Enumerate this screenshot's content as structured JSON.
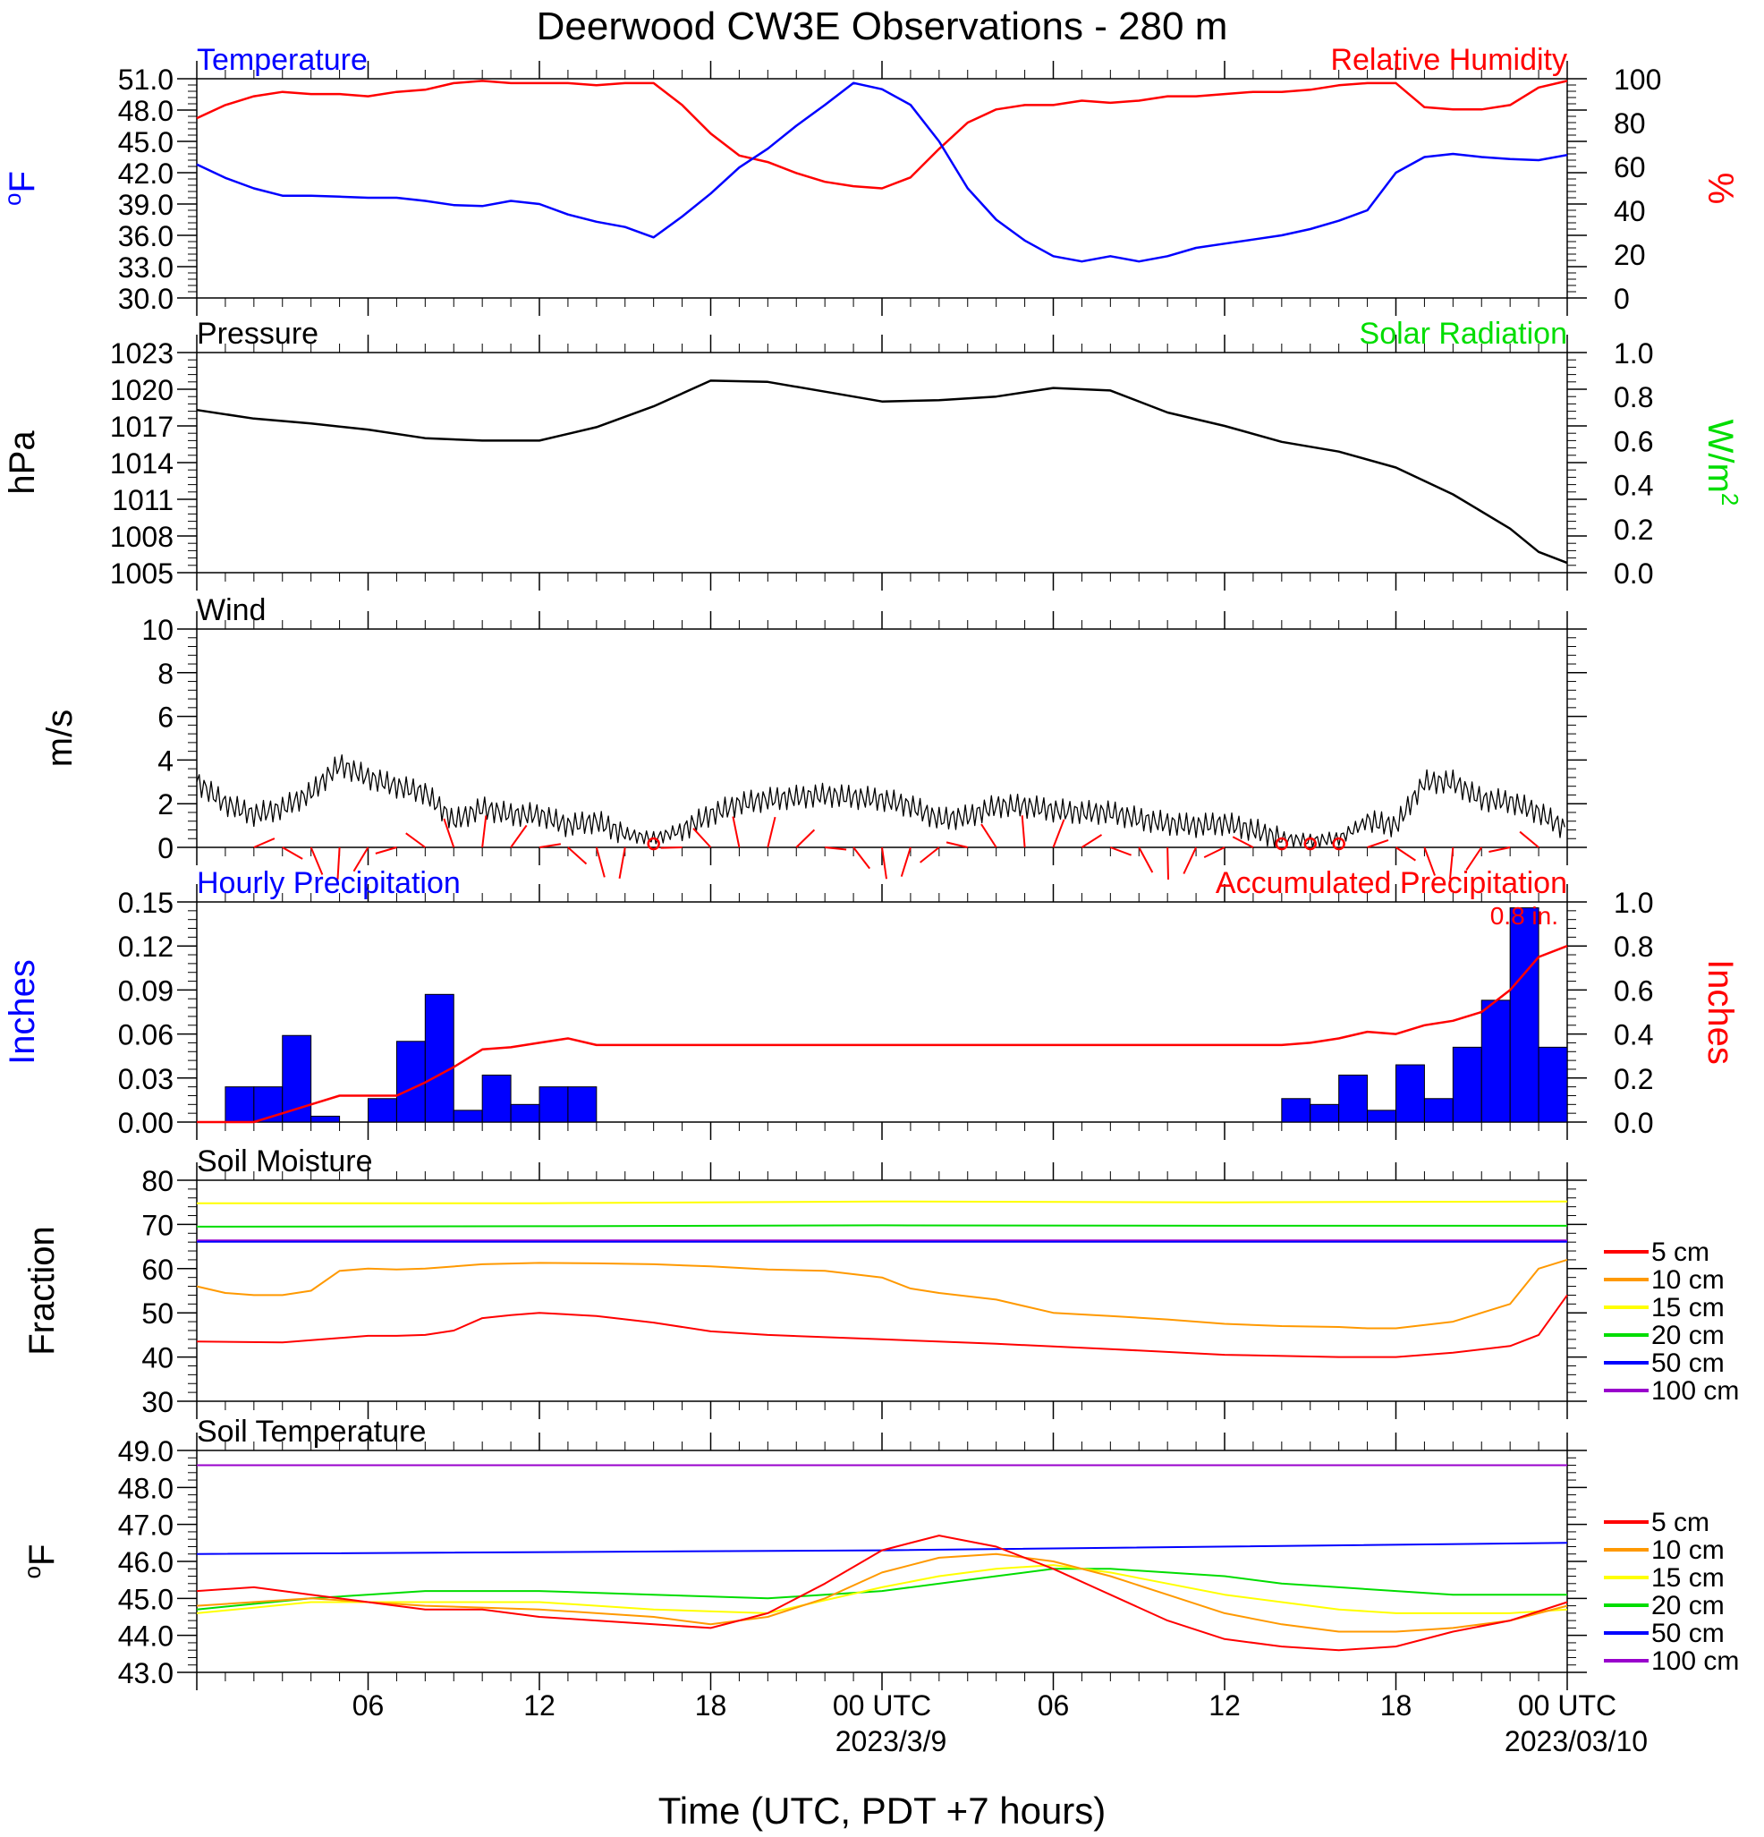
{
  "title": "Deerwood CW3E Observations - 280 m",
  "xaxis": {
    "label": "Time (UTC, PDT +7 hours)",
    "ticks": [
      {
        "h": 6,
        "label": "06",
        "sub": ""
      },
      {
        "h": 12,
        "label": "12",
        "sub": ""
      },
      {
        "h": 18,
        "label": "18",
        "sub": ""
      },
      {
        "h": 24,
        "label": "00 UTC",
        "sub": "2023/3/9"
      },
      {
        "h": 30,
        "label": "06",
        "sub": ""
      },
      {
        "h": 36,
        "label": "12",
        "sub": ""
      },
      {
        "h": 42,
        "label": "18",
        "sub": ""
      },
      {
        "h": 48,
        "label": "00 UTC",
        "sub": "2023/03/10"
      }
    ],
    "range_hours": [
      0,
      48
    ]
  },
  "colors": {
    "temperature": "#0000ff",
    "humidity": "#ff0000",
    "pressure": "#000000",
    "solar": "#00dd00",
    "wind": "#000000",
    "barbs": "#ff0000",
    "hourly_precip": "#0000ff",
    "accum_precip": "#ff0000"
  },
  "chart_data": [
    {
      "id": "temp_rh",
      "type": "line",
      "left_title": "Temperature",
      "right_title": "Relative Humidity",
      "left_unit": "oF",
      "right_unit": "%",
      "ylim_left": [
        30,
        51
      ],
      "yticks_left": [
        "51.0",
        "48.0",
        "45.0",
        "42.0",
        "39.0",
        "36.0",
        "33.0",
        "30.0"
      ],
      "ylim_right": [
        0,
        100
      ],
      "yticks_right": [
        "100",
        "80",
        "60",
        "40",
        "20",
        "0"
      ],
      "series": [
        {
          "name": "Temperature",
          "axis": "left",
          "x": [
            0,
            1,
            2,
            3,
            4,
            5,
            6,
            7,
            8,
            9,
            10,
            11,
            12,
            13,
            14,
            15,
            16,
            17,
            18,
            19,
            20,
            21,
            22,
            23,
            24,
            25,
            26,
            27,
            28,
            29,
            30,
            31,
            32,
            33,
            34,
            35,
            36,
            37,
            38,
            39,
            40,
            41,
            42,
            43,
            44,
            45,
            46,
            47,
            48
          ],
          "y": [
            42.8,
            41.5,
            40.5,
            39.8,
            39.8,
            39.7,
            39.6,
            39.6,
            39.3,
            38.9,
            38.8,
            39.3,
            39.0,
            38.0,
            37.3,
            36.8,
            35.8,
            37.8,
            40.0,
            42.5,
            44.3,
            46.5,
            48.5,
            50.6,
            50.0,
            48.5,
            45.0,
            40.5,
            37.5,
            35.5,
            34.0,
            33.5,
            34.0,
            33.5,
            34.0,
            34.8,
            35.2,
            35.6,
            36.0,
            36.6,
            37.4,
            38.4,
            42.0,
            43.5,
            43.8,
            43.5,
            43.3,
            43.2,
            43.7
          ]
        },
        {
          "name": "Relative Humidity",
          "axis": "right",
          "x": [
            0,
            1,
            2,
            3,
            4,
            5,
            6,
            7,
            8,
            9,
            10,
            11,
            12,
            13,
            14,
            15,
            16,
            17,
            18,
            19,
            20,
            21,
            22,
            23,
            24,
            25,
            26,
            27,
            28,
            29,
            30,
            31,
            32,
            33,
            34,
            35,
            36,
            37,
            38,
            39,
            40,
            41,
            42,
            43,
            44,
            45,
            46,
            47,
            48
          ],
          "y": [
            82,
            88,
            92,
            94,
            93,
            93,
            92,
            94,
            95,
            98,
            99,
            98,
            98,
            98,
            97,
            98,
            98,
            88,
            75,
            65,
            62,
            57,
            53,
            51,
            50,
            55,
            68,
            80,
            86,
            88,
            88,
            90,
            89,
            90,
            92,
            92,
            93,
            94,
            94,
            95,
            97,
            98,
            98,
            87,
            86,
            86,
            88,
            96,
            99
          ]
        }
      ]
    },
    {
      "id": "pressure",
      "type": "line",
      "left_title": "Pressure",
      "right_title": "Solar Radiation",
      "left_unit": "hPa",
      "right_unit": "W/m2",
      "ylim_left": [
        1005,
        1023
      ],
      "yticks_left": [
        "1023",
        "1020",
        "1017",
        "1014",
        "1011",
        "1008",
        "1005"
      ],
      "ylim_right": [
        0,
        1
      ],
      "yticks_right": [
        "1.0",
        "0.8",
        "0.6",
        "0.4",
        "0.2",
        "0.0"
      ],
      "series": [
        {
          "name": "Pressure",
          "axis": "left",
          "x": [
            0,
            2,
            4,
            6,
            8,
            10,
            12,
            14,
            16,
            18,
            20,
            22,
            24,
            26,
            28,
            30,
            32,
            34,
            36,
            38,
            40,
            42,
            44,
            46,
            47,
            48
          ],
          "y": [
            1018.3,
            1017.6,
            1017.2,
            1016.7,
            1016.0,
            1015.8,
            1015.8,
            1016.9,
            1018.6,
            1020.7,
            1020.6,
            1019.8,
            1019.0,
            1019.1,
            1019.4,
            1020.1,
            1019.9,
            1018.1,
            1017.0,
            1015.7,
            1014.9,
            1013.6,
            1011.4,
            1008.6,
            1006.7,
            1005.8
          ]
        }
      ]
    },
    {
      "id": "wind",
      "type": "line",
      "left_title": "Wind",
      "left_unit": "m/s",
      "ylim_left": [
        0,
        10
      ],
      "yticks_left": [
        "10",
        "8",
        "6",
        "4",
        "2",
        "0"
      ],
      "series": [
        {
          "name": "Wind speed",
          "axis": "left",
          "x": [
            0,
            1,
            2,
            3,
            4,
            5,
            6,
            7,
            8,
            9,
            10,
            11,
            12,
            13,
            14,
            15,
            16,
            17,
            18,
            19,
            20,
            21,
            22,
            23,
            24,
            25,
            26,
            27,
            28,
            29,
            30,
            31,
            32,
            33,
            34,
            35,
            36,
            37,
            38,
            39,
            40,
            41,
            42,
            43,
            44,
            45,
            46,
            47,
            48
          ],
          "y": [
            3.0,
            2.0,
            1.5,
            1.8,
            2.5,
            3.8,
            3.2,
            2.8,
            2.5,
            1.2,
            1.8,
            1.5,
            1.5,
            1.0,
            1.2,
            0.6,
            0.4,
            0.8,
            1.5,
            2.0,
            2.2,
            2.3,
            2.4,
            2.3,
            2.2,
            1.9,
            1.3,
            1.4,
            1.9,
            1.9,
            1.7,
            1.6,
            1.6,
            1.3,
            1.1,
            1.0,
            1.1,
            0.8,
            0.4,
            0.3,
            0.4,
            1.2,
            1.0,
            3.0,
            3.0,
            2.2,
            2.1,
            1.6,
            0.8
          ]
        }
      ]
    },
    {
      "id": "precip",
      "type": "bar",
      "left_title": "Hourly Precipitation",
      "right_title": "Accumulated Precipitation",
      "left_unit": "Inches",
      "right_unit": "Inches",
      "annotation": "0.8 in.",
      "ylim_left": [
        0,
        0.15
      ],
      "yticks_left": [
        "0.15",
        "0.12",
        "0.09",
        "0.06",
        "0.03",
        "0.00"
      ],
      "ylim_right": [
        0,
        1
      ],
      "yticks_right": [
        "1.0",
        "0.8",
        "0.6",
        "0.4",
        "0.2",
        "0.0"
      ],
      "hourly": {
        "start_hour": [
          1,
          2,
          3,
          4,
          6,
          7,
          8,
          9,
          10,
          11,
          12,
          13,
          38,
          39,
          40,
          41,
          42,
          43,
          44,
          45,
          46,
          47
        ],
        "values": [
          0.024,
          0.024,
          0.059,
          0.004,
          0.016,
          0.055,
          0.087,
          0.008,
          0.032,
          0.012,
          0.024,
          0.024,
          0.016,
          0.012,
          0.032,
          0.008,
          0.039,
          0.016,
          0.051,
          0.083,
          0.146,
          0.051
        ]
      },
      "accumulated": {
        "name": "Accumulated Precipitation",
        "x": [
          0,
          1,
          2,
          3,
          4,
          5,
          6,
          7,
          8,
          9,
          10,
          11,
          12,
          13,
          14,
          30,
          38,
          39,
          40,
          41,
          42,
          43,
          44,
          45,
          46,
          47,
          48
        ],
        "y": [
          0.0,
          0.0,
          0.0,
          0.04,
          0.08,
          0.12,
          0.12,
          0.12,
          0.18,
          0.25,
          0.33,
          0.34,
          0.36,
          0.38,
          0.35,
          0.35,
          0.35,
          0.36,
          0.38,
          0.41,
          0.4,
          0.44,
          0.46,
          0.5,
          0.6,
          0.75,
          0.8
        ]
      }
    },
    {
      "id": "soil_moisture",
      "type": "line",
      "left_title": "Soil Moisture",
      "left_unit": "Fraction",
      "ylim_left": [
        30,
        80
      ],
      "yticks_left": [
        "80",
        "70",
        "60",
        "50",
        "40",
        "30"
      ],
      "series": [
        {
          "name": "5 cm",
          "color": "#ff0000",
          "x": [
            0,
            3,
            6,
            7,
            8,
            9,
            10,
            11,
            12,
            14,
            16,
            18,
            20,
            24,
            28,
            32,
            36,
            40,
            42,
            44,
            46,
            47,
            48
          ],
          "y": [
            43.5,
            43.3,
            44.8,
            44.8,
            45.0,
            46.0,
            48.8,
            49.5,
            50.0,
            49.3,
            47.8,
            45.8,
            45.0,
            44.0,
            43.0,
            41.8,
            40.5,
            40.0,
            40.0,
            41.0,
            42.5,
            45.0,
            54.0
          ]
        },
        {
          "name": "10 cm",
          "color": "#ff9900",
          "x": [
            0,
            1,
            2,
            3,
            4,
            5,
            6,
            7,
            8,
            10,
            12,
            14,
            16,
            18,
            20,
            22,
            24,
            25,
            26,
            28,
            30,
            32,
            34,
            36,
            38,
            40,
            41,
            42,
            44,
            46,
            47,
            48
          ],
          "y": [
            56,
            54.5,
            54,
            54,
            55,
            59.5,
            60,
            59.8,
            60,
            61,
            61.3,
            61.2,
            61,
            60.5,
            59.8,
            59.5,
            58,
            55.5,
            54.5,
            53,
            50,
            49.3,
            48.5,
            47.5,
            47,
            46.8,
            46.5,
            46.5,
            48,
            52,
            60,
            62
          ]
        },
        {
          "name": "15 cm",
          "color": "#ffff00",
          "x": [
            0,
            12,
            24,
            36,
            48
          ],
          "y": [
            74.8,
            74.8,
            75.2,
            75.0,
            75.2
          ]
        },
        {
          "name": "20 cm",
          "color": "#00dd00",
          "x": [
            0,
            12,
            24,
            36,
            48
          ],
          "y": [
            69.5,
            69.6,
            69.8,
            69.7,
            69.7
          ]
        },
        {
          "name": "50 cm",
          "color": "#0000ff",
          "x": [
            0,
            48
          ],
          "y": [
            66.1,
            66.1
          ]
        },
        {
          "name": "100 cm",
          "color": "#9900cc",
          "x": [
            0,
            48
          ],
          "y": [
            66.4,
            66.4
          ]
        }
      ]
    },
    {
      "id": "soil_temperature",
      "type": "line",
      "left_title": "Soil Temperature",
      "left_unit": "oF",
      "ylim_left": [
        43,
        49
      ],
      "yticks_left": [
        "49.0",
        "48.0",
        "47.0",
        "46.0",
        "45.0",
        "44.0",
        "43.0"
      ],
      "series": [
        {
          "name": "5 cm",
          "color": "#ff0000",
          "x": [
            0,
            2,
            4,
            6,
            8,
            10,
            12,
            14,
            16,
            18,
            20,
            22,
            24,
            26,
            28,
            30,
            32,
            34,
            36,
            38,
            40,
            42,
            44,
            46,
            48
          ],
          "y": [
            45.2,
            45.3,
            45.1,
            44.9,
            44.7,
            44.7,
            44.5,
            44.4,
            44.3,
            44.2,
            44.6,
            45.4,
            46.3,
            46.7,
            46.4,
            45.8,
            45.1,
            44.4,
            43.9,
            43.7,
            43.6,
            43.7,
            44.1,
            44.4,
            44.9
          ]
        },
        {
          "name": "10 cm",
          "color": "#ff9900",
          "x": [
            0,
            4,
            8,
            12,
            16,
            18,
            20,
            22,
            24,
            26,
            28,
            30,
            32,
            34,
            36,
            38,
            40,
            42,
            44,
            46,
            48
          ],
          "y": [
            44.8,
            45.0,
            44.8,
            44.7,
            44.5,
            44.3,
            44.5,
            45.0,
            45.7,
            46.1,
            46.2,
            46.0,
            45.6,
            45.1,
            44.6,
            44.3,
            44.1,
            44.1,
            44.2,
            44.4,
            44.8
          ]
        },
        {
          "name": "15 cm",
          "color": "#ffff00",
          "x": [
            0,
            4,
            8,
            12,
            16,
            20,
            24,
            26,
            28,
            30,
            32,
            34,
            36,
            38,
            40,
            42,
            44,
            46,
            48
          ],
          "y": [
            44.6,
            44.9,
            44.9,
            44.9,
            44.7,
            44.6,
            45.3,
            45.6,
            45.8,
            45.9,
            45.7,
            45.4,
            45.1,
            44.9,
            44.7,
            44.6,
            44.6,
            44.6,
            44.7
          ]
        },
        {
          "name": "20 cm",
          "color": "#00dd00",
          "x": [
            0,
            4,
            8,
            12,
            16,
            20,
            24,
            28,
            30,
            32,
            34,
            36,
            38,
            40,
            42,
            44,
            46,
            48
          ],
          "y": [
            44.7,
            45.0,
            45.2,
            45.2,
            45.1,
            45.0,
            45.2,
            45.6,
            45.8,
            45.8,
            45.7,
            45.6,
            45.4,
            45.3,
            45.2,
            45.1,
            45.1,
            45.1
          ]
        },
        {
          "name": "50 cm",
          "color": "#0000ff",
          "x": [
            0,
            24,
            48
          ],
          "y": [
            46.2,
            46.3,
            46.5
          ]
        },
        {
          "name": "100 cm",
          "color": "#9900cc",
          "x": [
            0,
            24,
            48
          ],
          "y": [
            48.6,
            48.6,
            48.6
          ]
        }
      ]
    }
  ],
  "legend": {
    "labels": [
      "5 cm",
      "10 cm",
      "15 cm",
      "20 cm",
      "50 cm",
      "100 cm"
    ],
    "colors": [
      "#ff0000",
      "#ff9900",
      "#ffff00",
      "#00dd00",
      "#0000ff",
      "#9900cc"
    ]
  }
}
